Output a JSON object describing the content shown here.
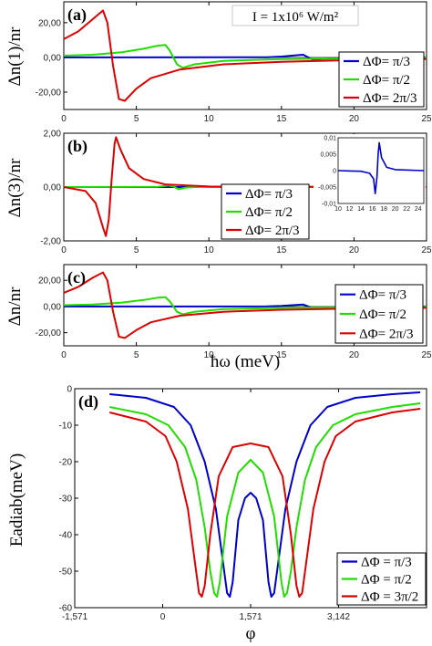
{
  "chart_data": [
    {
      "type": "line",
      "panel_label": "(a)",
      "ylabel": "Δn(1)/nr",
      "xlim": [
        0,
        25
      ],
      "ylim": [
        -30,
        32
      ],
      "xticks": [
        "0",
        "5",
        "10",
        "15",
        "20",
        "25"
      ],
      "yticks": [
        {
          "value": 20,
          "label": "20,00"
        },
        {
          "value": 0,
          "label": "0,00"
        },
        {
          "value": -20,
          "label": "-20,00"
        }
      ],
      "annotation": "I = 1x10⁶ W/m²",
      "legend_position": "right",
      "series": [
        {
          "name": "ΔΦ= π/3",
          "color": "#0000cc",
          "points": [
            [
              0,
              0
            ],
            [
              14,
              0.1
            ],
            [
              15,
              0.5
            ],
            [
              16,
              1.2
            ],
            [
              16.5,
              1.5
            ],
            [
              16.8,
              0.2
            ],
            [
              17.2,
              -1.5
            ],
            [
              18,
              -0.8
            ],
            [
              20,
              -0.3
            ],
            [
              25,
              0
            ]
          ]
        },
        {
          "name": "ΔΦ= π/2",
          "color": "#22dd00",
          "points": [
            [
              0,
              1
            ],
            [
              2,
              1.5
            ],
            [
              4,
              3
            ],
            [
              5.5,
              5
            ],
            [
              6.5,
              6.8
            ],
            [
              7,
              7.2
            ],
            [
              7.3,
              4
            ],
            [
              7.8,
              -4
            ],
            [
              8.2,
              -6
            ],
            [
              9,
              -4
            ],
            [
              11,
              -2
            ],
            [
              15,
              -1
            ],
            [
              25,
              -0.2
            ]
          ]
        },
        {
          "name": "ΔΦ= 2π/3",
          "color": "#dd0000",
          "points": [
            [
              0,
              10.5
            ],
            [
              1,
              15
            ],
            [
              2,
              22
            ],
            [
              2.7,
              27
            ],
            [
              3,
              20
            ],
            [
              3.4,
              -5
            ],
            [
              3.8,
              -24
            ],
            [
              4.2,
              -25
            ],
            [
              5,
              -18
            ],
            [
              6,
              -12
            ],
            [
              8,
              -7
            ],
            [
              11,
              -4
            ],
            [
              15,
              -2.5
            ],
            [
              20,
              -1.5
            ],
            [
              25,
              -1
            ]
          ]
        }
      ]
    },
    {
      "type": "line",
      "panel_label": "(b)",
      "ylabel": "Δn(3)/nr",
      "xlim": [
        0,
        25
      ],
      "ylim": [
        -2,
        2
      ],
      "xticks": [
        "0",
        "5",
        "10",
        "15",
        "20",
        "25"
      ],
      "yticks": [
        {
          "value": 2,
          "label": "2,00"
        },
        {
          "value": 0,
          "label": "0,00"
        },
        {
          "value": -2,
          "label": "-2,00"
        }
      ],
      "legend_position": "center-right",
      "series": [
        {
          "name": "ΔΦ= π/3",
          "color": "#0000cc",
          "points": [
            [
              0,
              0
            ],
            [
              25,
              0
            ]
          ]
        },
        {
          "name": "ΔΦ= π/2",
          "color": "#22dd00",
          "points": [
            [
              0,
              0
            ],
            [
              6.5,
              0.01
            ],
            [
              7.2,
              0.06
            ],
            [
              7.6,
              0.01
            ],
            [
              7.9,
              -0.08
            ],
            [
              8.4,
              -0.02
            ],
            [
              9,
              0
            ],
            [
              25,
              0
            ]
          ]
        },
        {
          "name": "ΔΦ= 2π/3",
          "color": "#dd0000",
          "points": [
            [
              0,
              0
            ],
            [
              1.5,
              -0.15
            ],
            [
              2.2,
              -0.6
            ],
            [
              2.7,
              -1.5
            ],
            [
              2.9,
              -1.82
            ],
            [
              3.1,
              -1.2
            ],
            [
              3.3,
              0.3
            ],
            [
              3.5,
              1.6
            ],
            [
              3.6,
              1.85
            ],
            [
              3.9,
              1.4
            ],
            [
              4.5,
              0.7
            ],
            [
              5.5,
              0.3
            ],
            [
              7,
              0.1
            ],
            [
              10,
              0.02
            ],
            [
              25,
              0
            ]
          ]
        }
      ],
      "inset": {
        "type": "line",
        "xlim": [
          10,
          25
        ],
        "ylim": [
          -0.01,
          0.01
        ],
        "xticks": [
          "10",
          "12",
          "14",
          "16",
          "18",
          "20",
          "22",
          "24"
        ],
        "yticks": [
          "0,01",
          "0,005",
          "0",
          "-0,005",
          "-0,01"
        ],
        "series": [
          {
            "color": "#0000cc",
            "points": [
              [
                10,
                0
              ],
              [
                14,
                -0.0002
              ],
              [
                15.5,
                -0.0008
              ],
              [
                16.2,
                -0.0025
              ],
              [
                16.5,
                -0.007
              ],
              [
                16.8,
                -0.002
              ],
              [
                17,
                0.005
              ],
              [
                17.2,
                0.0085
              ],
              [
                17.6,
                0.004
              ],
              [
                18.5,
                0.001
              ],
              [
                20,
                0.0003
              ],
              [
                25,
                0
              ]
            ]
          }
        ]
      }
    },
    {
      "type": "line",
      "panel_label": "(c)",
      "ylabel": "Δn/nr",
      "xlabel": "ħω (meV)",
      "xlim": [
        0,
        25
      ],
      "ylim": [
        -30,
        32
      ],
      "xticks": [
        "0",
        "5",
        "10",
        "15",
        "20",
        "25"
      ],
      "yticks": [
        {
          "value": 20,
          "label": "20,00"
        },
        {
          "value": 0,
          "label": "0,00"
        },
        {
          "value": -20,
          "label": "-20,00"
        }
      ],
      "legend_position": "right",
      "series": [
        {
          "name": "ΔΦ= π/3",
          "color": "#0000cc",
          "points": [
            [
              0,
              0
            ],
            [
              14,
              0.1
            ],
            [
              15,
              0.5
            ],
            [
              16,
              1.2
            ],
            [
              16.5,
              1.5
            ],
            [
              16.8,
              0.2
            ],
            [
              17.2,
              -1.5
            ],
            [
              18,
              -0.8
            ],
            [
              20,
              -0.3
            ],
            [
              25,
              0
            ]
          ]
        },
        {
          "name": "ΔΦ= π/2",
          "color": "#22dd00",
          "points": [
            [
              0,
              1
            ],
            [
              2,
              1.5
            ],
            [
              4,
              3
            ],
            [
              5.5,
              5
            ],
            [
              6.5,
              6.8
            ],
            [
              7,
              7.2
            ],
            [
              7.3,
              4
            ],
            [
              7.8,
              -4
            ],
            [
              8.2,
              -6
            ],
            [
              9,
              -4
            ],
            [
              11,
              -2
            ],
            [
              15,
              -1
            ],
            [
              25,
              -0.2
            ]
          ]
        },
        {
          "name": "ΔΦ= 2π/3",
          "color": "#dd0000",
          "points": [
            [
              0,
              10.5
            ],
            [
              1,
              15
            ],
            [
              2,
              22
            ],
            [
              2.7,
              26
            ],
            [
              3,
              20
            ],
            [
              3.4,
              -4
            ],
            [
              3.8,
              -23
            ],
            [
              4.2,
              -24
            ],
            [
              5,
              -18
            ],
            [
              6,
              -12
            ],
            [
              8,
              -7
            ],
            [
              11,
              -4
            ],
            [
              15,
              -2.5
            ],
            [
              20,
              -1.5
            ],
            [
              25,
              -1
            ]
          ]
        }
      ]
    },
    {
      "type": "line",
      "panel_label": "(d)",
      "ylabel": "Eadiab(meV)",
      "xlabel": "φ",
      "xlim": [
        -1.571,
        4.712
      ],
      "ylim": [
        -60,
        0
      ],
      "xticks": [
        {
          "value": -1.571,
          "label": "-1,571"
        },
        {
          "value": 0,
          "label": "0"
        },
        {
          "value": 1.571,
          "label": "1,571"
        },
        {
          "value": 3.142,
          "label": "3,142"
        }
      ],
      "yticks": [
        {
          "value": 0,
          "label": "0"
        },
        {
          "value": -10,
          "label": "-10"
        },
        {
          "value": -20,
          "label": "-20"
        },
        {
          "value": -30,
          "label": "-30"
        },
        {
          "value": -40,
          "label": "-40"
        },
        {
          "value": -50,
          "label": "-50"
        },
        {
          "value": -60,
          "label": "-60"
        }
      ],
      "legend_position": "bottom-right",
      "series": [
        {
          "name": "ΔΦ = π/3",
          "color": "#0000cc",
          "points": [
            [
              -0.95,
              -1.5
            ],
            [
              -0.3,
              -2.5
            ],
            [
              0.2,
              -5
            ],
            [
              0.5,
              -10
            ],
            [
              0.75,
              -20
            ],
            [
              0.95,
              -33
            ],
            [
              1.08,
              -48
            ],
            [
              1.15,
              -56
            ],
            [
              1.2,
              -57
            ],
            [
              1.25,
              -53
            ],
            [
              1.35,
              -36
            ],
            [
              1.47,
              -30
            ],
            [
              1.571,
              -28.5
            ],
            [
              1.67,
              -30
            ],
            [
              1.79,
              -36
            ],
            [
              1.89,
              -53
            ],
            [
              1.94,
              -57
            ],
            [
              1.99,
              -56
            ],
            [
              2.06,
              -48
            ],
            [
              2.19,
              -33
            ],
            [
              2.39,
              -20
            ],
            [
              2.64,
              -10
            ],
            [
              2.94,
              -5
            ],
            [
              3.44,
              -2.5
            ],
            [
              4.1,
              -1.5
            ],
            [
              4.6,
              -1
            ]
          ]
        },
        {
          "name": "ΔΦ = π/2",
          "color": "#22dd00",
          "points": [
            [
              -0.95,
              -5
            ],
            [
              -0.3,
              -7
            ],
            [
              0.1,
              -10
            ],
            [
              0.4,
              -16
            ],
            [
              0.6,
              -25
            ],
            [
              0.75,
              -38
            ],
            [
              0.85,
              -50
            ],
            [
              0.92,
              -56
            ],
            [
              0.97,
              -57
            ],
            [
              1.02,
              -53
            ],
            [
              1.15,
              -35
            ],
            [
              1.35,
              -23
            ],
            [
              1.571,
              -19.5
            ],
            [
              1.79,
              -23
            ],
            [
              1.99,
              -35
            ],
            [
              2.12,
              -53
            ],
            [
              2.17,
              -57
            ],
            [
              2.22,
              -56
            ],
            [
              2.29,
              -50
            ],
            [
              2.39,
              -38
            ],
            [
              2.54,
              -25
            ],
            [
              2.74,
              -16
            ],
            [
              3.04,
              -10
            ],
            [
              3.44,
              -7
            ],
            [
              4.1,
              -5
            ],
            [
              4.6,
              -4
            ]
          ]
        },
        {
          "name": "ΔΦ = 3π/2",
          "color": "#dd0000",
          "points": [
            [
              -0.95,
              -6.5
            ],
            [
              -0.3,
              -9
            ],
            [
              0.05,
              -13
            ],
            [
              0.25,
              -20
            ],
            [
              0.45,
              -33
            ],
            [
              0.58,
              -48
            ],
            [
              0.65,
              -56
            ],
            [
              0.7,
              -57
            ],
            [
              0.75,
              -54
            ],
            [
              0.85,
              -40
            ],
            [
              1.0,
              -24
            ],
            [
              1.25,
              -16
            ],
            [
              1.571,
              -15
            ],
            [
              1.89,
              -16
            ],
            [
              2.14,
              -24
            ],
            [
              2.29,
              -40
            ],
            [
              2.39,
              -54
            ],
            [
              2.44,
              -57
            ],
            [
              2.49,
              -56
            ],
            [
              2.56,
              -48
            ],
            [
              2.69,
              -33
            ],
            [
              2.89,
              -20
            ],
            [
              3.09,
              -13
            ],
            [
              3.44,
              -9
            ],
            [
              4.1,
              -6.5
            ],
            [
              4.6,
              -5.5
            ]
          ]
        }
      ]
    }
  ]
}
